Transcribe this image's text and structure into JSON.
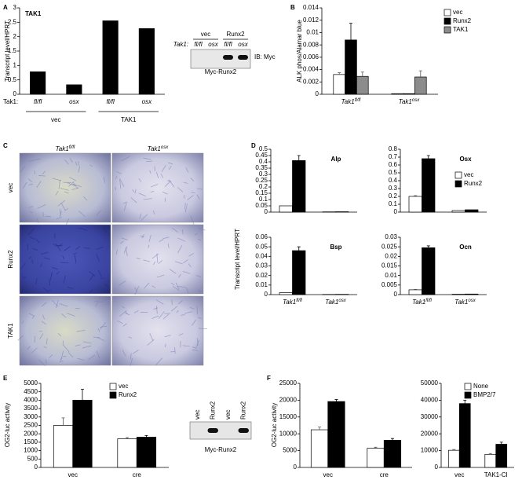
{
  "panel_labels": [
    "A",
    "B",
    "C",
    "D",
    "E",
    "F"
  ],
  "chart_data": [
    {
      "type": "bar",
      "title": "TAK1",
      "ylabel": "Transcript level/HPRT",
      "categories": [
        "fl/fl",
        "osx",
        "fl/fl",
        "osx"
      ],
      "groups": [
        "vec",
        "TAK1"
      ],
      "category_axis_label": "Tak1:",
      "values": [
        0.78,
        0.33,
        2.55,
        2.28
      ],
      "color": "#000000",
      "ylim": [
        0,
        3
      ],
      "yticks": [
        0,
        0.5,
        1,
        1.5,
        2,
        2.5,
        3
      ]
    },
    {
      "type": "bar",
      "ylabel": "ALK phos/Alamar blue",
      "categories": [
        "Tak1",
        "Tak1"
      ],
      "category_superscripts": [
        "fl/fl",
        "osx"
      ],
      "ylim": [
        0,
        0.014
      ],
      "yticks": [
        0,
        0.002,
        0.004,
        0.006,
        0.008,
        0.01,
        0.012,
        0.014
      ],
      "legend": "upper right",
      "series": [
        {
          "name": "vec",
          "color": "#ffffff",
          "values": [
            0.0032,
            0.0001
          ],
          "errors": [
            0.0003,
            null
          ]
        },
        {
          "name": "Runx2",
          "color": "#000000",
          "values": [
            0.0088,
            0.0001
          ],
          "errors": [
            0.0027,
            null
          ]
        },
        {
          "name": "TAK1",
          "color": "#8c8c8c",
          "values": [
            0.0029,
            0.0028
          ],
          "errors": [
            0.0007,
            0.001
          ]
        }
      ]
    },
    {
      "type": "bar",
      "title": "Alp",
      "ylabel": "Transcript level/HPRT",
      "ylim": [
        0,
        0.5
      ],
      "yticks": [
        0,
        0.05,
        0.1,
        0.15,
        0.2,
        0.25,
        0.3,
        0.35,
        0.4,
        0.45,
        0.5
      ],
      "series": [
        {
          "color": "#ffffff",
          "values": [
            0.05,
            0.002
          ],
          "errors": [
            null,
            null
          ]
        },
        {
          "color": "#000000",
          "values": [
            0.41,
            0.003
          ],
          "errors": [
            0.04,
            null
          ]
        }
      ]
    },
    {
      "type": "bar",
      "title": "Osx",
      "ylim": [
        0,
        0.8
      ],
      "yticks": [
        0,
        0.1,
        0.2,
        0.3,
        0.4,
        0.5,
        0.6,
        0.7,
        0.8
      ],
      "legend": "upper right",
      "series": [
        {
          "name": "vec",
          "color": "#ffffff",
          "values": [
            0.2,
            0.02
          ],
          "errors": [
            0.01,
            null
          ]
        },
        {
          "name": "Runx2",
          "color": "#000000",
          "values": [
            0.68,
            0.03
          ],
          "errors": [
            0.04,
            null
          ]
        }
      ]
    },
    {
      "type": "bar",
      "title": "Bsp",
      "categories": [
        "Tak1",
        "Tak1"
      ],
      "category_superscripts": [
        "fl/fl",
        "osx"
      ],
      "ylim": [
        0,
        0.06
      ],
      "yticks": [
        0,
        0.01,
        0.02,
        0.03,
        0.04,
        0.05,
        0.06
      ],
      "series": [
        {
          "color": "#ffffff",
          "values": [
            0.002,
            0.0002
          ],
          "errors": [
            null,
            null
          ]
        },
        {
          "color": "#000000",
          "values": [
            0.046,
            0.0003
          ],
          "errors": [
            0.004,
            null
          ]
        }
      ]
    },
    {
      "type": "bar",
      "title": "Ocn",
      "categories": [
        "Tak1",
        "Tak1"
      ],
      "category_superscripts": [
        "fl/fl",
        "osx"
      ],
      "ylim": [
        0,
        0.03
      ],
      "yticks": [
        0,
        0.005,
        0.01,
        0.015,
        0.02,
        0.025,
        0.03
      ],
      "series": [
        {
          "color": "#ffffff",
          "values": [
            0.0025,
            0.0002
          ],
          "errors": [
            0.0002,
            null
          ]
        },
        {
          "color": "#000000",
          "values": [
            0.0245,
            0.0003
          ],
          "errors": [
            0.001,
            null
          ]
        }
      ]
    },
    {
      "type": "bar",
      "ylabel": "OG2-luc activity",
      "categories": [
        "vec",
        "cre"
      ],
      "ylim": [
        0,
        5000
      ],
      "yticks": [
        0,
        500,
        1000,
        1500,
        2000,
        2500,
        3000,
        3500,
        4000,
        4500,
        5000
      ],
      "legend": "upper right",
      "series": [
        {
          "name": "vec",
          "color": "#ffffff",
          "values": [
            2500,
            1700
          ],
          "errors": [
            450,
            80
          ]
        },
        {
          "name": "Runx2",
          "color": "#000000",
          "values": [
            4000,
            1800
          ],
          "errors": [
            650,
            100
          ]
        }
      ]
    },
    {
      "type": "bar",
      "ylabel": "OG2-luc activity",
      "categories": [
        "vec",
        "cre"
      ],
      "ylim": [
        0,
        25000
      ],
      "yticks": [
        0,
        5000,
        10000,
        15000,
        20000,
        25000
      ],
      "series": [
        {
          "color": "#ffffff",
          "values": [
            11200,
            5700
          ],
          "errors": [
            800,
            300
          ]
        },
        {
          "color": "#000000",
          "values": [
            19600,
            8100
          ],
          "errors": [
            600,
            500
          ]
        }
      ]
    },
    {
      "type": "bar",
      "categories": [
        "vec",
        "TAK1-CI"
      ],
      "ylim": [
        0,
        50000
      ],
      "yticks": [
        0,
        10000,
        20000,
        30000,
        40000,
        50000
      ],
      "legend": "upper right",
      "series": [
        {
          "name": "None",
          "color": "#ffffff",
          "values": [
            10200,
            7800
          ],
          "errors": [
            500,
            500
          ]
        },
        {
          "name": "BMP2/7",
          "color": "#000000",
          "values": [
            38000,
            13800
          ],
          "errors": [
            2000,
            1200
          ]
        }
      ]
    }
  ],
  "blots": [
    {
      "header_groups": [
        "vec",
        "Runx2"
      ],
      "row_label": "Tak1:",
      "lane_labels": [
        "fl/fl",
        "osx",
        "fl/fl",
        "osx"
      ],
      "antibody": "IB: Myc",
      "caption": "Myc-Runx2"
    },
    {
      "lane_labels": [
        "vec",
        "Runx2",
        "vec",
        "Runx2"
      ],
      "caption": "Myc-Runx2"
    }
  ],
  "micrographs": {
    "columns": [
      {
        "name": "Tak1",
        "superscript": "fl/fl"
      },
      {
        "name": "Tak1",
        "superscript": "osx"
      }
    ],
    "rows": [
      "vec",
      "Runx2",
      "TAK1"
    ]
  }
}
